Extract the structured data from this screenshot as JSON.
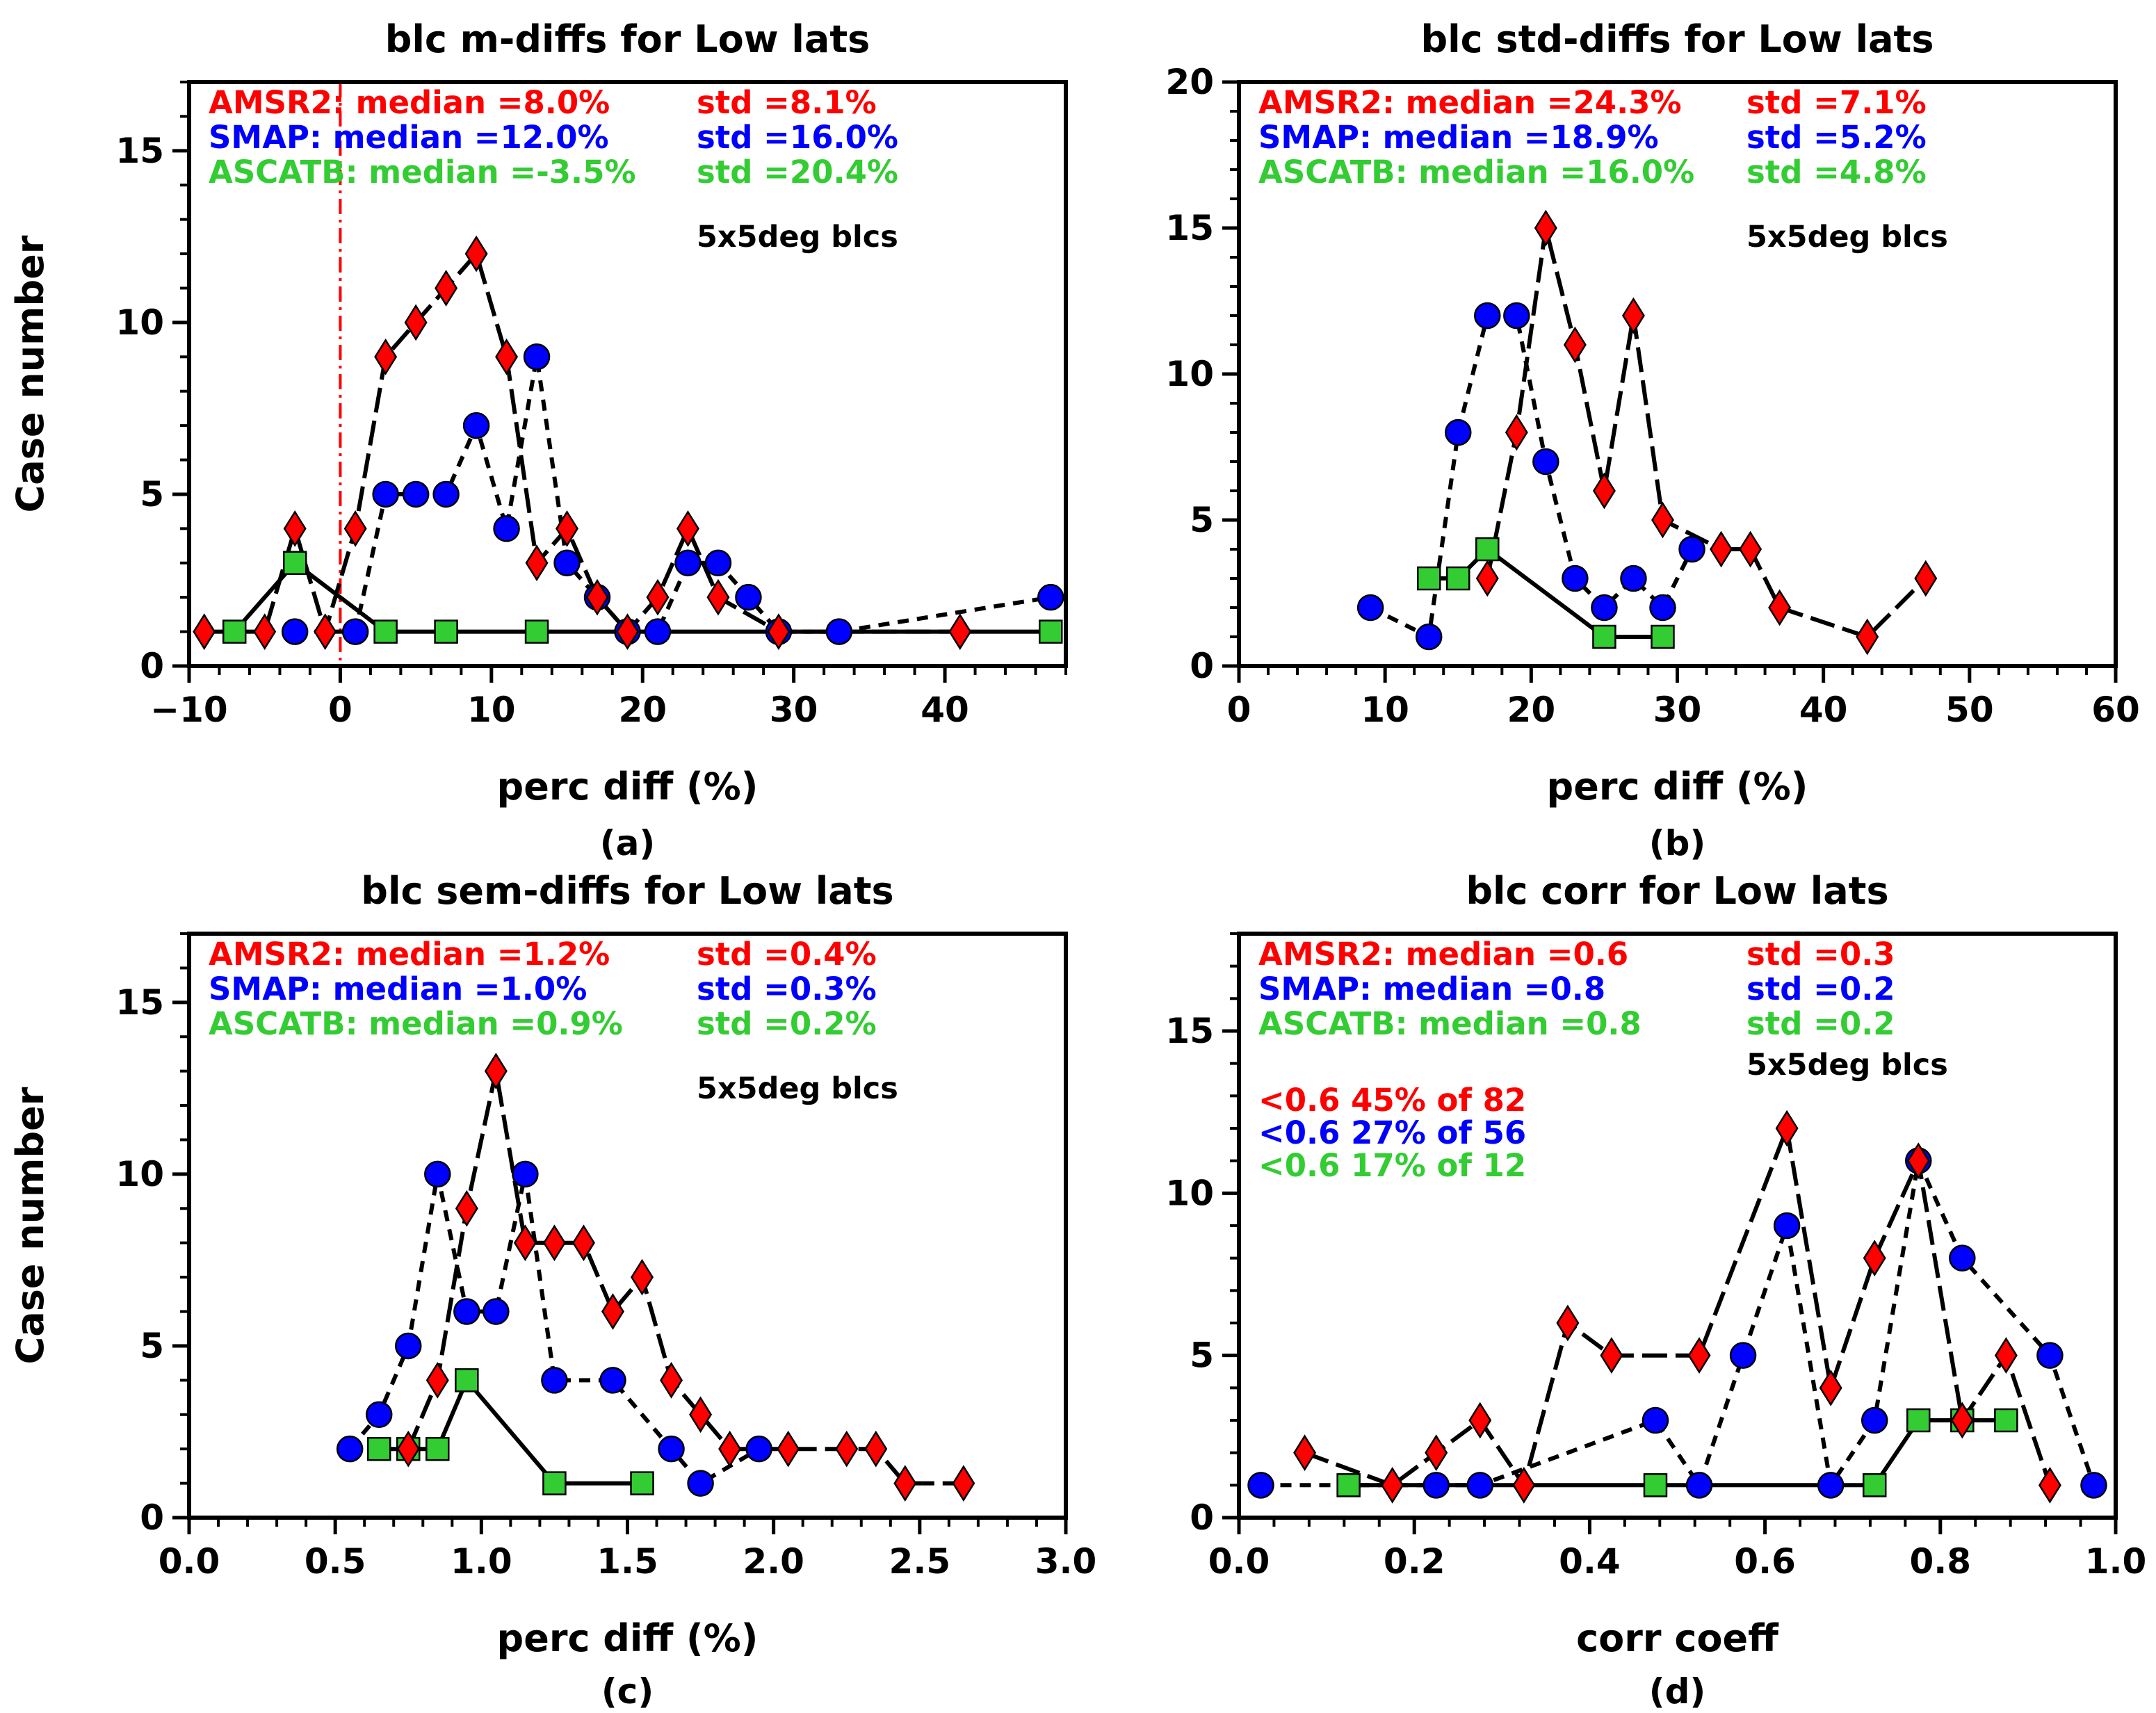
{
  "colors": {
    "amsr2": "#ff0000",
    "smap": "#0000ff",
    "ascatb": "#33cc33",
    "axis": "#000000",
    "refline": "#ff0000",
    "line": "#000000"
  },
  "chart_data": [
    {
      "type": "line",
      "title": "blc m-diffs for Low lats",
      "xlabel": "perc diff (%)",
      "ylabel": "Case number",
      "caption": "(a)",
      "xlim": [
        -10,
        48
      ],
      "ylim": [
        0,
        17
      ],
      "xticks": [
        -10,
        0,
        10,
        20,
        30,
        40
      ],
      "xtick_labels": [
        "−10",
        "0",
        "10",
        "20",
        "30",
        "40"
      ],
      "yticks": [
        0,
        5,
        10,
        15
      ],
      "ytick_labels": [
        "0",
        "5",
        "10",
        "15"
      ],
      "ref_x": 0,
      "legend": [
        {
          "label": "AMSR2: median =8.0%",
          "std": "std =8.1%"
        },
        {
          "label": "SMAP: median =12.0%",
          "std": "std =16.0%"
        },
        {
          "label": "ASCATB: median =-3.5%",
          "std": "std =20.4%"
        }
      ],
      "note": "5x5deg blcs",
      "series": [
        {
          "name": "AMSR2",
          "x": [
            -9,
            -5,
            -3,
            -1,
            1,
            3,
            5,
            7,
            9,
            11,
            13,
            15,
            17,
            19,
            21,
            23,
            25,
            29,
            41
          ],
          "values": [
            1,
            1,
            4,
            1,
            4,
            9,
            10,
            11,
            12,
            9,
            3,
            4,
            2,
            1,
            2,
            4,
            2,
            1,
            1
          ]
        },
        {
          "name": "SMAP",
          "x": [
            -3,
            1,
            3,
            5,
            7,
            9,
            11,
            13,
            15,
            17,
            19,
            21,
            23,
            25,
            27,
            29,
            33,
            47
          ],
          "values": [
            1,
            1,
            5,
            5,
            5,
            7,
            4,
            9,
            3,
            2,
            1,
            1,
            3,
            3,
            2,
            1,
            1,
            2
          ]
        },
        {
          "name": "ASCATB",
          "x": [
            -7,
            -3,
            3,
            7,
            13,
            47
          ],
          "values": [
            1,
            3,
            1,
            1,
            1,
            1
          ]
        }
      ]
    },
    {
      "type": "line",
      "title": "blc std-diffs for Low lats",
      "xlabel": "perc diff (%)",
      "ylabel": "",
      "caption": "(b)",
      "xlim": [
        0,
        60
      ],
      "ylim": [
        0,
        20
      ],
      "xticks": [
        0,
        10,
        20,
        30,
        40,
        50,
        60
      ],
      "xtick_labels": [
        "0",
        "10",
        "20",
        "30",
        "40",
        "50",
        "60"
      ],
      "yticks": [
        0,
        5,
        10,
        15,
        20
      ],
      "ytick_labels": [
        "0",
        "5",
        "10",
        "15",
        "20"
      ],
      "legend": [
        {
          "label": "AMSR2: median =24.3%",
          "std": "std =7.1%"
        },
        {
          "label": "SMAP: median =18.9%",
          "std": "std =5.2%"
        },
        {
          "label": "ASCATB: median =16.0%",
          "std": "std =4.8%"
        }
      ],
      "note": "5x5deg blcs",
      "series": [
        {
          "name": "AMSR2",
          "x": [
            17,
            19,
            21,
            23,
            25,
            27,
            29,
            33,
            35,
            37,
            43,
            47
          ],
          "values": [
            3,
            8,
            15,
            11,
            6,
            12,
            5,
            4,
            4,
            2,
            1,
            3
          ]
        },
        {
          "name": "SMAP",
          "x": [
            9,
            13,
            15,
            17,
            19,
            21,
            23,
            25,
            27,
            29,
            31
          ],
          "values": [
            2,
            1,
            8,
            12,
            12,
            7,
            3,
            2,
            3,
            2,
            4
          ]
        },
        {
          "name": "ASCATB",
          "x": [
            13,
            15,
            17,
            25,
            29
          ],
          "values": [
            3,
            3,
            4,
            1,
            1
          ]
        }
      ]
    },
    {
      "type": "line",
      "title": "blc sem-diffs for Low lats",
      "xlabel": "perc diff (%)",
      "ylabel": "Case number",
      "caption": "(c)",
      "xlim": [
        0,
        3
      ],
      "ylim": [
        0,
        17
      ],
      "xticks": [
        0,
        0.5,
        1,
        1.5,
        2,
        2.5,
        3
      ],
      "xtick_labels": [
        "0.0",
        "0.5",
        "1.0",
        "1.5",
        "2.0",
        "2.5",
        "3.0"
      ],
      "yticks": [
        0,
        5,
        10,
        15
      ],
      "ytick_labels": [
        "0",
        "5",
        "10",
        "15"
      ],
      "legend": [
        {
          "label": "AMSR2: median =1.2%",
          "std": "std =0.4%"
        },
        {
          "label": "SMAP: median =1.0%",
          "std": "std =0.3%"
        },
        {
          "label": "ASCATB: median =0.9%",
          "std": "std =0.2%"
        }
      ],
      "note": "5x5deg blcs",
      "series": [
        {
          "name": "AMSR2",
          "x": [
            0.75,
            0.85,
            0.95,
            1.05,
            1.15,
            1.25,
            1.35,
            1.45,
            1.55,
            1.65,
            1.75,
            1.85,
            2.05,
            2.25,
            2.35,
            2.45,
            2.65
          ],
          "values": [
            2,
            4,
            9,
            13,
            8,
            8,
            8,
            6,
            7,
            4,
            3,
            2,
            2,
            2,
            2,
            1,
            1
          ]
        },
        {
          "name": "SMAP",
          "x": [
            0.55,
            0.65,
            0.75,
            0.85,
            0.95,
            1.05,
            1.15,
            1.25,
            1.45,
            1.65,
            1.75,
            1.95
          ],
          "values": [
            2,
            3,
            5,
            10,
            6,
            6,
            10,
            4,
            4,
            2,
            1,
            2
          ]
        },
        {
          "name": "ASCATB",
          "x": [
            0.65,
            0.75,
            0.85,
            0.95,
            1.25,
            1.55
          ],
          "values": [
            2,
            2,
            2,
            4,
            1,
            1
          ]
        }
      ]
    },
    {
      "type": "line",
      "title": "blc corr for Low lats",
      "xlabel": "corr coeff",
      "ylabel": "",
      "caption": "(d)",
      "xlim": [
        0,
        1
      ],
      "ylim": [
        0,
        18
      ],
      "xticks": [
        0,
        0.2,
        0.4,
        0.6,
        0.8,
        1
      ],
      "xtick_labels": [
        "0.0",
        "0.2",
        "0.4",
        "0.6",
        "0.8",
        "1.0"
      ],
      "yticks": [
        0,
        5,
        10,
        15
      ],
      "ytick_labels": [
        "0",
        "5",
        "10",
        "15"
      ],
      "legend": [
        {
          "label": "AMSR2: median =0.6",
          "std": "std =0.3"
        },
        {
          "label": "SMAP: median =0.8",
          "std": "std =0.2"
        },
        {
          "label": "ASCATB: median =0.8",
          "std": "std =0.2"
        }
      ],
      "note": "5x5deg blcs",
      "extra_lines": [
        {
          "text": "<0.6 45% of 82",
          "series": "AMSR2"
        },
        {
          "text": "<0.6 27% of 56",
          "series": "SMAP"
        },
        {
          "text": "<0.6 17% of 12",
          "series": "ASCATB"
        }
      ],
      "series": [
        {
          "name": "AMSR2",
          "x": [
            0.075,
            0.175,
            0.225,
            0.275,
            0.325,
            0.375,
            0.425,
            0.525,
            0.625,
            0.675,
            0.725,
            0.775,
            0.825,
            0.875,
            0.925
          ],
          "values": [
            2,
            1,
            2,
            3,
            1,
            6,
            5,
            5,
            12,
            4,
            8,
            11,
            3,
            5,
            1
          ]
        },
        {
          "name": "SMAP",
          "x": [
            0.025,
            0.225,
            0.275,
            0.475,
            0.525,
            0.575,
            0.625,
            0.675,
            0.725,
            0.775,
            0.825,
            0.925,
            0.975
          ],
          "values": [
            1,
            1,
            1,
            3,
            1,
            5,
            9,
            1,
            3,
            11,
            8,
            5,
            1
          ]
        },
        {
          "name": "ASCATB",
          "x": [
            0.125,
            0.475,
            0.725,
            0.775,
            0.825,
            0.875
          ],
          "values": [
            1,
            1,
            1,
            3,
            3,
            3
          ]
        }
      ]
    }
  ]
}
